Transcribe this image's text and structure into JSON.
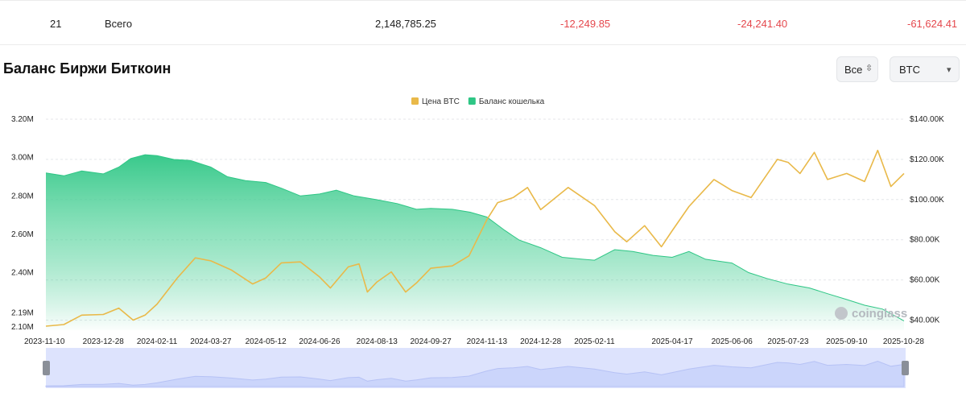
{
  "table_row": {
    "index": "21",
    "label": "Всего",
    "balance": "2,148,785.25",
    "change_1": "-12,249.85",
    "change_2": "-24,241.40",
    "change_3": "-61,624.41"
  },
  "section_title": "Баланс Биржи Биткоин",
  "controls": {
    "range_value": "Все",
    "range_icon": "up-down-chevron-icon",
    "coin_value": "BTC",
    "coin_icon": "caret-down-icon"
  },
  "watermark": "coinglass",
  "colors": {
    "price": "#e9b949",
    "balance": "#2ec685",
    "navigator": "#d5dcff",
    "negative": "#e5484d"
  },
  "chart_data": {
    "type": "area",
    "title": "",
    "legend": {
      "placement": "top-center",
      "entries": [
        {
          "name": "Цена BTC",
          "color": "#e9b949"
        },
        {
          "name": "Баланс кошелька",
          "color": "#2ec685"
        }
      ]
    },
    "y_left_ticks": [
      "3.20M",
      "3.00M",
      "2.80M",
      "2.60M",
      "2.40M",
      "2.19M",
      "2.10M"
    ],
    "y_right_ticks": [
      "$140.00K",
      "$120.00K",
      "$100.00K",
      "$80.00K",
      "$60.00K",
      "$40.00K"
    ],
    "x_ticks": [
      "2023-11-10",
      "2023-12-28",
      "2024-02-11",
      "2024-03-27",
      "2024-05-12",
      "2024-06-26",
      "2024-08-13",
      "2024-09-27",
      "2024-11-13",
      "2024-12-28",
      "2025-02-11",
      "2025-04-17",
      "2025-06-06",
      "2025-07-23",
      "2025-09-10",
      "2025-10-28"
    ],
    "y_left_range": [
      2100000,
      3200000
    ],
    "y_right_range": [
      35000,
      140000
    ],
    "grid": "horizontal-dashed",
    "series": [
      {
        "name": "Баланс кошелька",
        "axis": "left",
        "points": [
          [
            "2023-11-10",
            2920000
          ],
          [
            "2023-11-25",
            2905000
          ],
          [
            "2023-12-10",
            2930000
          ],
          [
            "2023-12-28",
            2915000
          ],
          [
            "2024-01-10",
            2950000
          ],
          [
            "2024-01-20",
            2995000
          ],
          [
            "2024-02-01",
            3015000
          ],
          [
            "2024-02-11",
            3010000
          ],
          [
            "2024-02-25",
            2990000
          ],
          [
            "2024-03-10",
            2985000
          ],
          [
            "2024-03-27",
            2950000
          ],
          [
            "2024-04-10",
            2900000
          ],
          [
            "2024-04-25",
            2880000
          ],
          [
            "2024-05-12",
            2870000
          ],
          [
            "2024-05-25",
            2840000
          ],
          [
            "2024-06-10",
            2800000
          ],
          [
            "2024-06-26",
            2810000
          ],
          [
            "2024-07-10",
            2830000
          ],
          [
            "2024-07-25",
            2800000
          ],
          [
            "2024-08-13",
            2780000
          ],
          [
            "2024-08-30",
            2760000
          ],
          [
            "2024-09-15",
            2730000
          ],
          [
            "2024-09-27",
            2735000
          ],
          [
            "2024-10-15",
            2730000
          ],
          [
            "2024-10-30",
            2715000
          ],
          [
            "2024-11-13",
            2690000
          ],
          [
            "2024-11-28",
            2620000
          ],
          [
            "2024-12-10",
            2570000
          ],
          [
            "2024-12-28",
            2530000
          ],
          [
            "2025-01-15",
            2480000
          ],
          [
            "2025-02-01",
            2470000
          ],
          [
            "2025-02-11",
            2465000
          ],
          [
            "2025-02-28",
            2520000
          ],
          [
            "2025-03-15",
            2510000
          ],
          [
            "2025-04-01",
            2490000
          ],
          [
            "2025-04-17",
            2480000
          ],
          [
            "2025-05-01",
            2510000
          ],
          [
            "2025-05-15",
            2470000
          ],
          [
            "2025-06-06",
            2450000
          ],
          [
            "2025-06-20",
            2400000
          ],
          [
            "2025-07-05",
            2370000
          ],
          [
            "2025-07-23",
            2340000
          ],
          [
            "2025-08-10",
            2320000
          ],
          [
            "2025-08-25",
            2290000
          ],
          [
            "2025-09-10",
            2260000
          ],
          [
            "2025-09-25",
            2230000
          ],
          [
            "2025-10-10",
            2210000
          ],
          [
            "2025-10-28",
            2148785
          ]
        ]
      },
      {
        "name": "Цена BTC",
        "axis": "right",
        "points": [
          [
            "2023-11-10",
            37000
          ],
          [
            "2023-11-25",
            37800
          ],
          [
            "2023-12-10",
            42500
          ],
          [
            "2023-12-28",
            42800
          ],
          [
            "2024-01-10",
            46000
          ],
          [
            "2024-01-22",
            40000
          ],
          [
            "2024-02-01",
            42500
          ],
          [
            "2024-02-11",
            48000
          ],
          [
            "2024-02-28",
            61000
          ],
          [
            "2024-03-14",
            71000
          ],
          [
            "2024-03-27",
            69500
          ],
          [
            "2024-04-13",
            65000
          ],
          [
            "2024-05-01",
            58000
          ],
          [
            "2024-05-12",
            61000
          ],
          [
            "2024-05-25",
            68500
          ],
          [
            "2024-06-10",
            69000
          ],
          [
            "2024-06-26",
            61500
          ],
          [
            "2024-07-05",
            56000
          ],
          [
            "2024-07-20",
            66500
          ],
          [
            "2024-07-29",
            68000
          ],
          [
            "2024-08-05",
            54000
          ],
          [
            "2024-08-13",
            59000
          ],
          [
            "2024-08-25",
            64000
          ],
          [
            "2024-09-06",
            54000
          ],
          [
            "2024-09-15",
            58500
          ],
          [
            "2024-09-27",
            65800
          ],
          [
            "2024-10-15",
            67000
          ],
          [
            "2024-10-29",
            72000
          ],
          [
            "2024-11-13",
            90000
          ],
          [
            "2024-11-22",
            98500
          ],
          [
            "2024-12-05",
            101000
          ],
          [
            "2024-12-17",
            106000
          ],
          [
            "2024-12-28",
            95000
          ],
          [
            "2025-01-20",
            106000
          ],
          [
            "2025-02-11",
            97000
          ],
          [
            "2025-02-28",
            84000
          ],
          [
            "2025-03-10",
            79000
          ],
          [
            "2025-03-25",
            87000
          ],
          [
            "2025-04-08",
            76500
          ],
          [
            "2025-04-17",
            84500
          ],
          [
            "2025-05-01",
            96500
          ],
          [
            "2025-05-22",
            110000
          ],
          [
            "2025-06-06",
            104500
          ],
          [
            "2025-06-22",
            101000
          ],
          [
            "2025-07-14",
            120000
          ],
          [
            "2025-07-23",
            118500
          ],
          [
            "2025-08-02",
            113000
          ],
          [
            "2025-08-14",
            123500
          ],
          [
            "2025-08-25",
            110000
          ],
          [
            "2025-09-10",
            113000
          ],
          [
            "2025-09-25",
            109000
          ],
          [
            "2025-10-06",
            124500
          ],
          [
            "2025-10-17",
            106500
          ],
          [
            "2025-10-28",
            113000
          ]
        ]
      }
    ]
  }
}
